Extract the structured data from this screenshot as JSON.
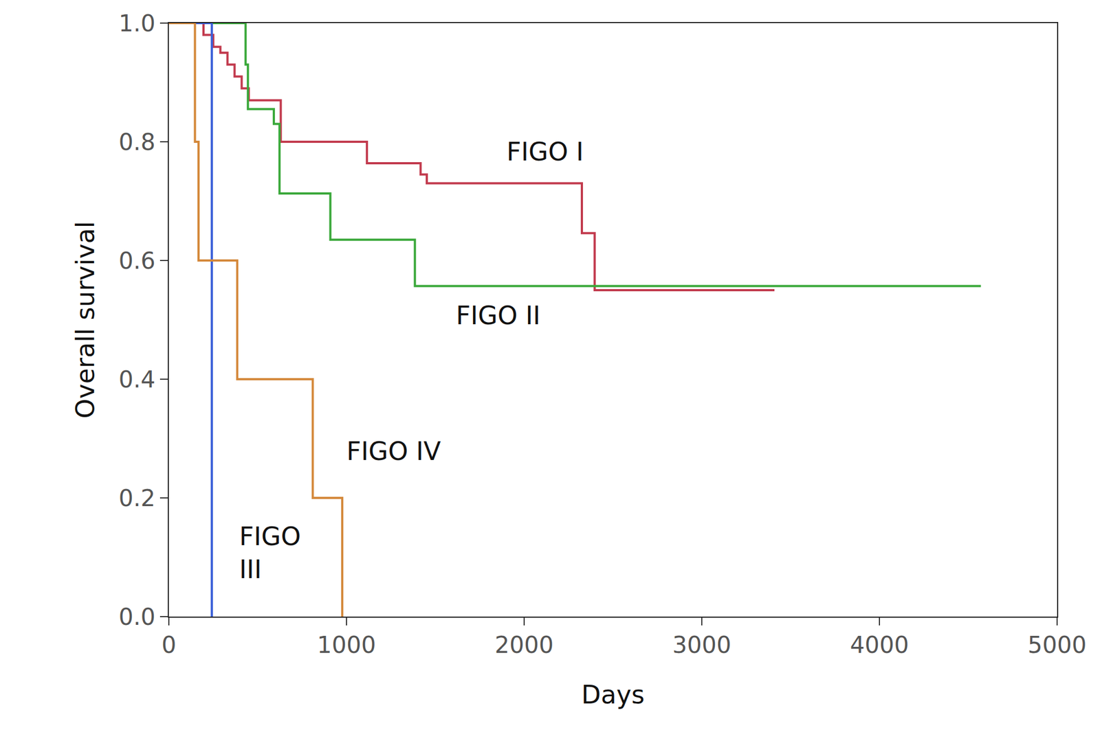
{
  "chart_data": {
    "type": "step",
    "x_label": "Days",
    "y_label": "Overall survival",
    "xlim": [
      0,
      5000
    ],
    "ylim": [
      0,
      1
    ],
    "xticks": [
      0,
      1000,
      2000,
      3000,
      4000,
      5000
    ],
    "yticks": [
      {
        "value": 0,
        "label": "0.0"
      },
      {
        "value": 0.2,
        "label": "0.2"
      },
      {
        "value": 0.4,
        "label": "0.4"
      },
      {
        "value": 0.6,
        "label": "0.6"
      },
      {
        "value": 0.8,
        "label": "0.8"
      },
      {
        "value": 1,
        "label": "1.0"
      }
    ],
    "grid": false,
    "series": [
      {
        "name": "FIGO I",
        "color": "#c23b4e",
        "x": [
          0,
          195,
          250,
          290,
          330,
          370,
          410,
          450,
          630,
          1115,
          1417,
          1452,
          2325,
          2397,
          3409
        ],
        "values": [
          1.0,
          0.98,
          0.96,
          0.95,
          0.93,
          0.91,
          0.89,
          0.87,
          0.8,
          0.764,
          0.745,
          0.73,
          0.646,
          0.55,
          0.55
        ]
      },
      {
        "name": "FIGO II",
        "color": "#3aa83a",
        "x": [
          0,
          432,
          445,
          591,
          623,
          909,
          1385,
          4571
        ],
        "values": [
          1.0,
          0.93,
          0.855,
          0.83,
          0.713,
          0.635,
          0.557,
          0.557
        ]
      },
      {
        "name": "FIGO III",
        "color": "#3a5fd8",
        "x": [
          0,
          242
        ],
        "values": [
          1.0,
          0.0
        ]
      },
      {
        "name": "FIGO IV",
        "color": "#d4883a",
        "x": [
          0,
          147,
          167,
          385,
          810,
          976
        ],
        "values": [
          1.0,
          0.8,
          0.6,
          0.4,
          0.2,
          0.0
        ]
      }
    ]
  }
}
